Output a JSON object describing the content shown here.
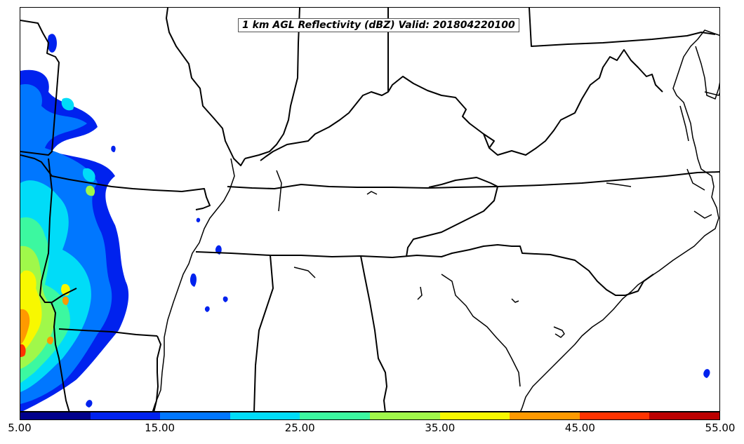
{
  "map": {
    "title": "1 km AGL Reflectivity (dBZ) Valid: 201804220100",
    "variable": "1 km AGL Reflectivity",
    "units": "dBZ",
    "valid_time": "201804220100"
  },
  "colorbar": {
    "min": 5.0,
    "max": 55.0,
    "interval": 5.0,
    "tick_labels": [
      "5.00",
      "15.00",
      "25.00",
      "35.00",
      "45.00",
      "55.00"
    ],
    "colors": [
      "#00008c",
      "#0022ee",
      "#0077ff",
      "#00dcf8",
      "#3cf8a0",
      "#a0f84a",
      "#f8f800",
      "#ff9900",
      "#ff3300",
      "#bb0000"
    ]
  },
  "legend_colors": {
    "outline": "#000000",
    "background": "#ffffff"
  }
}
